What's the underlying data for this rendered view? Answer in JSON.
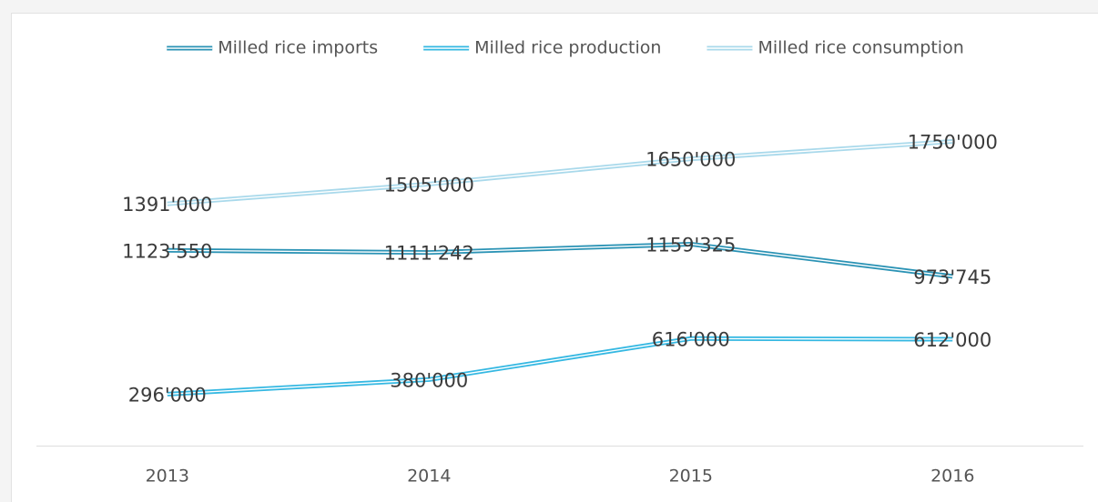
{
  "chart_data": {
    "type": "line",
    "categories": [
      "2013",
      "2014",
      "2015",
      "2016"
    ],
    "ylim": [
      0,
      2250000
    ],
    "series": [
      {
        "name": "Milled rice imports",
        "color": "#2b93b5",
        "values": [
          1123550,
          1111242,
          1159325,
          973745
        ],
        "value_labels": [
          "1123'550",
          "1111'242",
          "1159'325",
          "973'745"
        ]
      },
      {
        "name": "Milled rice production",
        "color": "#35b8e2",
        "values": [
          296000,
          380000,
          616000,
          612000
        ],
        "value_labels": [
          "296'000",
          "380'000",
          "616'000",
          "612'000"
        ]
      },
      {
        "name": "Milled rice consumption",
        "color": "#a9d9eb",
        "values": [
          1391000,
          1505000,
          1650000,
          1750000
        ],
        "value_labels": [
          "1391'000",
          "1505'000",
          "1650'000",
          "1750'000"
        ]
      }
    ]
  }
}
